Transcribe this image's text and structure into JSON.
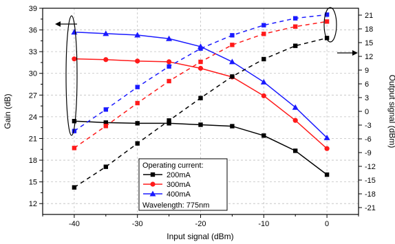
{
  "chart_data": {
    "type": "line",
    "title": "",
    "xlabel": "Input signal (dBm)",
    "ylabel": "Gain (dB)",
    "y2label": "Output signal (dBm)",
    "x": [
      -40,
      -35,
      -30,
      -25,
      -20,
      -15,
      -10,
      -5,
      0
    ],
    "xlim": [
      -45,
      5
    ],
    "xticks": [
      -40,
      -30,
      -20,
      -10,
      0
    ],
    "ylim": [
      10.5,
      39
    ],
    "yticks": [
      12,
      15,
      18,
      21,
      24,
      27,
      30,
      33,
      36,
      39
    ],
    "y2lim": [
      -22.5,
      22.5
    ],
    "y2ticks": [
      -21,
      -18,
      -15,
      -12,
      -9,
      -6,
      -3,
      0,
      3,
      6,
      9,
      12,
      15,
      18,
      21
    ],
    "grid": true,
    "colors": {
      "200mA": "#000000",
      "300mA": "#ff1a1a",
      "400mA": "#1a1aff"
    },
    "series": [
      {
        "name": "200mA",
        "axis": "left",
        "style": "solid",
        "marker": "square",
        "color": "#000000",
        "values": [
          23.4,
          23.2,
          23.1,
          23.1,
          22.9,
          22.7,
          21.4,
          19.3,
          16.0
        ]
      },
      {
        "name": "300mA",
        "axis": "left",
        "style": "solid",
        "marker": "circle",
        "color": "#ff1a1a",
        "values": [
          32.0,
          31.9,
          31.7,
          31.6,
          30.7,
          29.5,
          26.9,
          23.5,
          19.6
        ]
      },
      {
        "name": "400mA",
        "axis": "left",
        "style": "solid",
        "marker": "triangle",
        "color": "#1a1aff",
        "values": [
          35.7,
          35.5,
          35.3,
          34.8,
          33.7,
          31.6,
          28.8,
          25.3,
          21.1
        ]
      },
      {
        "name": "200mA",
        "axis": "right",
        "style": "dashed",
        "marker": "square",
        "color": "#000000",
        "values": [
          -16.6,
          -12.1,
          -7.0,
          -2.0,
          2.9,
          7.6,
          11.4,
          14.3,
          16.0
        ]
      },
      {
        "name": "300mA",
        "axis": "right",
        "style": "dashed",
        "marker": "square",
        "color": "#ff1a1a",
        "values": [
          -8.0,
          -3.2,
          1.8,
          6.6,
          10.8,
          14.5,
          16.9,
          18.5,
          19.6
        ]
      },
      {
        "name": "400mA",
        "axis": "right",
        "style": "dashed",
        "marker": "square",
        "color": "#1a1aff",
        "values": [
          -4.3,
          0.4,
          5.3,
          9.8,
          13.7,
          16.6,
          18.8,
          20.3,
          21.1
        ]
      }
    ],
    "legend": {
      "placement": "bottom-center",
      "title": "Operating current:",
      "entries": [
        "200mA",
        "300mA",
        "400mA"
      ],
      "note": "Wavelength: 775nm"
    }
  }
}
